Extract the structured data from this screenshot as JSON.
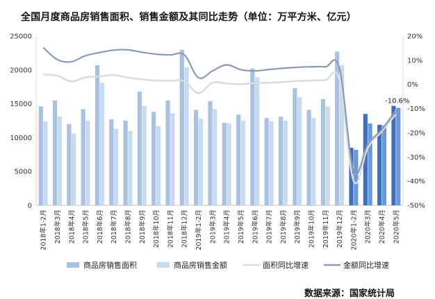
{
  "chart_data": {
    "type": "bar",
    "title": "全国月度商品房销售面积、销售金额及其同比走势（单位：万平方米、亿元）",
    "source": "数据来源：国家统计局",
    "categories": [
      "2018年1-2月",
      "2018年3月",
      "2018年4月",
      "2018年5月",
      "2018年6月",
      "2018年7月",
      "2018年8月",
      "2018年9月",
      "2018年10月",
      "2018年11月",
      "2018年12月",
      "2019年1-2月",
      "2019年3月",
      "2019年4月",
      "2019年5月",
      "2019年6月",
      "2019年7月",
      "2019年8月",
      "2019年9月",
      "2019年10月",
      "2019年11月",
      "2019年12月",
      "2020年1-2月",
      "2020年3月",
      "2020年4月",
      "2020年5月"
    ],
    "left_axis": {
      "min": 0,
      "max": 25000,
      "ticks": [
        0,
        5000,
        10000,
        15000,
        20000,
        25000
      ]
    },
    "right_axis": {
      "min": -50,
      "max": 20,
      "ticks": [
        20,
        10,
        0,
        -10,
        -20,
        -30,
        -40,
        -50
      ],
      "tick_labels": [
        "20%",
        "10%",
        "0%",
        "-10%",
        "-20%",
        "-30%",
        "-40%",
        "-50%"
      ]
    },
    "highlight_from_index": 22,
    "series": [
      {
        "name": "商品房销售面积",
        "kind": "bar",
        "axis": "left",
        "color": "#a9c1e3",
        "highlight_color": "#3f6fbf",
        "values": [
          14600,
          15500,
          12000,
          14200,
          20700,
          12700,
          12500,
          16800,
          13800,
          15500,
          23000,
          14100,
          15400,
          12200,
          13400,
          20200,
          12900,
          13100,
          17300,
          14100,
          15700,
          22700,
          8500,
          13500,
          11900,
          14700
        ]
      },
      {
        "name": "商品房销售金额",
        "kind": "bar",
        "axis": "left",
        "color": "#c7daf2",
        "highlight_color": "#6a9ad6",
        "values": [
          12400,
          13100,
          10600,
          12500,
          18100,
          11300,
          11000,
          14700,
          11700,
          13600,
          20400,
          12800,
          14200,
          12100,
          12500,
          18900,
          12400,
          12500,
          16000,
          12900,
          14600,
          20700,
          8200,
          12100,
          11800,
          14400
        ]
      },
      {
        "name": "面积同比增速",
        "kind": "line",
        "axis": "right",
        "color": "#dcdcdc",
        "values": [
          4.1,
          3.6,
          1.3,
          2.9,
          3.3,
          3.9,
          2.8,
          2.1,
          1.6,
          1.5,
          1.3,
          -3.6,
          0.7,
          0.4,
          0.1,
          0.6,
          0.7,
          1.0,
          1.4,
          1.6,
          1.8,
          1.8,
          -39.9,
          -26.3,
          -19.3,
          -12.3
        ]
      },
      {
        "name": "金额同比增速",
        "kind": "line",
        "axis": "right",
        "color": "#8a9ab4",
        "values": [
          15.3,
          10.3,
          9.4,
          11.9,
          13.2,
          14.2,
          14.3,
          13.3,
          12.5,
          12.2,
          12.2,
          2.8,
          5.6,
          8.1,
          6.1,
          5.6,
          6.2,
          6.7,
          7.1,
          7.3,
          7.3,
          6.5,
          -35.9,
          -24.7,
          -18.6,
          -10.6
        ]
      }
    ],
    "annotations": [
      {
        "series": "金额同比增速",
        "index": 25,
        "text": "-10.6%"
      }
    ],
    "legend_position": "bottom"
  }
}
